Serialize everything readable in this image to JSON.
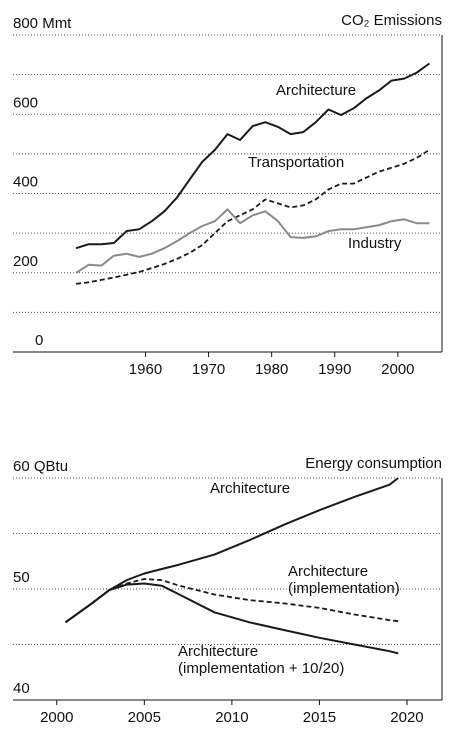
{
  "chart_data": [
    {
      "type": "line",
      "title": "CO₂ Emissions",
      "x": [
        1949,
        1951,
        1953,
        1955,
        1957,
        1959,
        1961,
        1963,
        1965,
        1967,
        1969,
        1971,
        1973,
        1975,
        1977,
        1979,
        1981,
        1983,
        1985,
        1987,
        1989,
        1991,
        1993,
        1995,
        1997,
        1999,
        2001,
        2003,
        2005
      ],
      "series": [
        {
          "name": "Architecture",
          "color": "#1a1a1a",
          "dashed": false,
          "values": [
            262,
            272,
            272,
            275,
            305,
            310,
            330,
            355,
            390,
            435,
            480,
            510,
            550,
            535,
            570,
            580,
            568,
            550,
            555,
            580,
            612,
            598,
            615,
            640,
            660,
            685,
            690,
            705,
            728
          ]
        },
        {
          "name": "Transportation",
          "color": "#1a1a1a",
          "dashed": true,
          "values": [
            172,
            176,
            182,
            188,
            195,
            202,
            212,
            222,
            235,
            250,
            270,
            300,
            330,
            345,
            360,
            385,
            375,
            365,
            370,
            385,
            410,
            425,
            425,
            440,
            455,
            465,
            475,
            490,
            510
          ]
        },
        {
          "name": "Industry",
          "color": "#8a8a8a",
          "dashed": false,
          "values": [
            200,
            220,
            218,
            243,
            248,
            240,
            248,
            262,
            280,
            300,
            318,
            330,
            360,
            325,
            345,
            355,
            330,
            290,
            288,
            292,
            305,
            310,
            310,
            315,
            320,
            330,
            335,
            325,
            325
          ]
        }
      ],
      "xlim": [
        1939,
        2007
      ],
      "xticks": [
        1960,
        1970,
        1980,
        1990,
        2000
      ],
      "ylim": [
        0,
        800
      ],
      "yticks": [
        0,
        200,
        400,
        600,
        {
          "value": 800,
          "label": "800 Mmt"
        }
      ],
      "yminor": [
        100,
        300,
        500,
        700
      ],
      "grid": true
    },
    {
      "type": "line",
      "title": "Energy consumption",
      "x": [
        2000.5,
        2002,
        2003,
        2004,
        2005,
        2006,
        2007,
        2009,
        2011,
        2013,
        2015,
        2017,
        2019,
        2019.5
      ],
      "series": [
        {
          "name": "Architecture",
          "color": "#1a1a1a",
          "dashed": false,
          "values": [
            47.0,
            48.7,
            49.9,
            50.8,
            51.4,
            51.8,
            52.2,
            53.1,
            54.4,
            55.8,
            57.1,
            58.3,
            59.4,
            60.0
          ]
        },
        {
          "name": "Architecture (implementation)",
          "color": "#1a1a1a",
          "dashed": true,
          "values": [
            47.0,
            48.7,
            49.9,
            50.5,
            50.9,
            50.8,
            50.3,
            49.5,
            49.0,
            48.7,
            48.3,
            47.7,
            47.2,
            47.1
          ]
        },
        {
          "name": "Architecture (implementation + 10/20)",
          "color": "#1a1a1a",
          "dashed": false,
          "values": [
            47.0,
            48.7,
            49.9,
            50.4,
            50.5,
            50.3,
            49.5,
            47.9,
            47.0,
            46.3,
            45.6,
            45.0,
            44.4,
            44.2
          ]
        }
      ],
      "xlim": [
        1997.5,
        2022
      ],
      "xticks": [
        2000,
        2005,
        2010,
        2015,
        2020
      ],
      "ylim": [
        40,
        60
      ],
      "yticks": [
        40,
        50,
        {
          "value": 60,
          "label": "60  QBtu"
        }
      ],
      "yminor": [
        45,
        55
      ],
      "grid": true
    }
  ]
}
